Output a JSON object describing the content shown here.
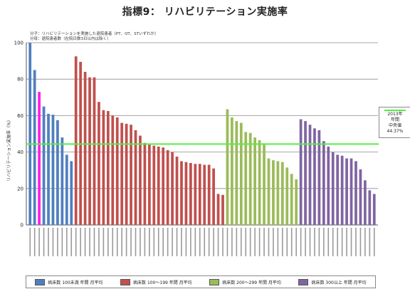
{
  "page": {
    "title": "指標9： リハビリテーション実施率",
    "numerator_note": "分子：リハビリテーションを実施した退院患者（PT、OT、STいずれか）",
    "denominator_note": "分母：退院患者数（在院日数3日以内は除く）"
  },
  "median_box": {
    "line1": "2013年",
    "line2": "年間",
    "line3": "中央値",
    "line4": "44.37%"
  },
  "colors": {
    "blue": "#4f7fbf",
    "magenta": "#ff1ee6",
    "red": "#c0504d",
    "green": "#9bbb59",
    "purple": "#8064a2",
    "median": "#55ee44"
  },
  "chart_data": {
    "type": "bar",
    "ylabel": "リハビリテーション実施率（%）",
    "ylim": [
      0,
      100
    ],
    "yticks": [
      0,
      20,
      40,
      60,
      80,
      100
    ],
    "grid": true,
    "legend_position": "bottom",
    "median": 44.37,
    "series": [
      {
        "name": "病床数 100未満 年間 月平均",
        "color": "blue",
        "values": [
          100,
          85,
          73,
          65,
          61,
          60.5,
          57.5,
          48,
          38.5,
          35
        ],
        "highlight_index": 2,
        "highlight_color": "magenta"
      },
      {
        "name": "病床数 100〜199 年間 月平均",
        "color": "red",
        "values": [
          92.5,
          89.5,
          84,
          81,
          81,
          67.5,
          63,
          62.5,
          60,
          59,
          56,
          55.5,
          55,
          52,
          49,
          45,
          44,
          43.5,
          43,
          42.5,
          41,
          40,
          37.5,
          35,
          34.5,
          34,
          33.5,
          33.5,
          33,
          33,
          31,
          17,
          16.5
        ]
      },
      {
        "name": "病床数 200〜299 年間 月平均",
        "color": "green",
        "values": [
          63.5,
          59,
          57,
          56,
          51,
          50.5,
          48,
          46.5,
          44,
          36.5,
          35.5,
          35,
          34.5,
          31.5,
          28,
          25
        ]
      },
      {
        "name": "病床数 300以上 年間 月平均",
        "color": "purple",
        "values": [
          58,
          57,
          55,
          53,
          52,
          46,
          43,
          40,
          38.5,
          38,
          36.5,
          36.5,
          35,
          30.5,
          24.5,
          19,
          17
        ]
      }
    ]
  }
}
